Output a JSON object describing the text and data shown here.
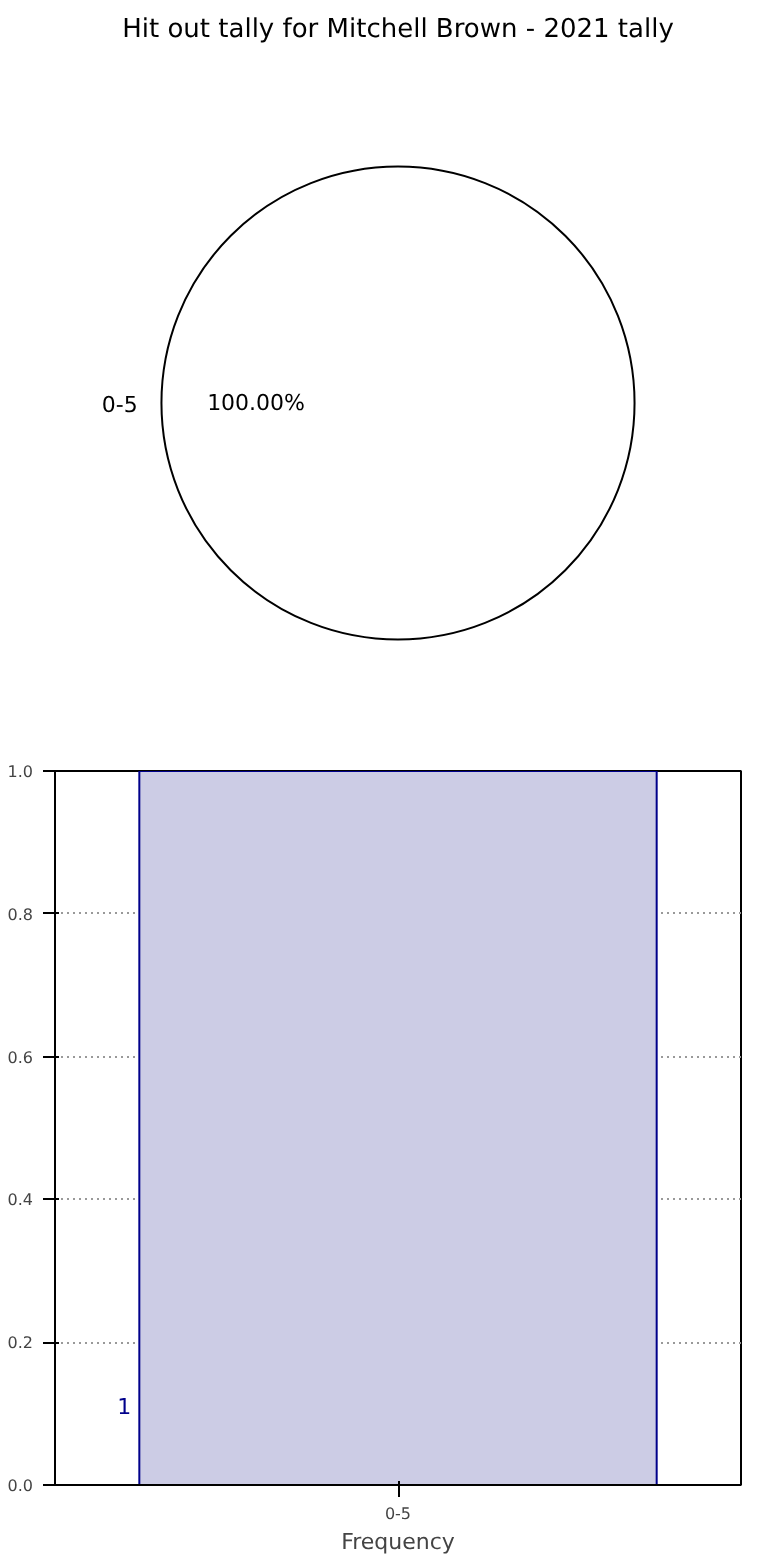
{
  "chart_data": [
    {
      "type": "pie",
      "title": "Hit out tally for Mitchell Brown - 2021 tally",
      "categories": [
        "0-5"
      ],
      "values": [
        100
      ],
      "colors": [
        "#ffffff"
      ],
      "value_labels": [
        "100.00%"
      ]
    },
    {
      "type": "bar",
      "categories": [
        "0-5"
      ],
      "values": [
        1
      ],
      "color": "#ccccE5",
      "xlabel": "Frequency",
      "ylim": [
        0,
        1.0
      ],
      "yticks": [
        {
          "value": 0,
          "label": "0.0"
        },
        0.2,
        0.4,
        0.6,
        0.8,
        {
          "value": 1,
          "label": "1.0"
        }
      ],
      "grid": true,
      "value_labels": [
        "1"
      ]
    }
  ]
}
